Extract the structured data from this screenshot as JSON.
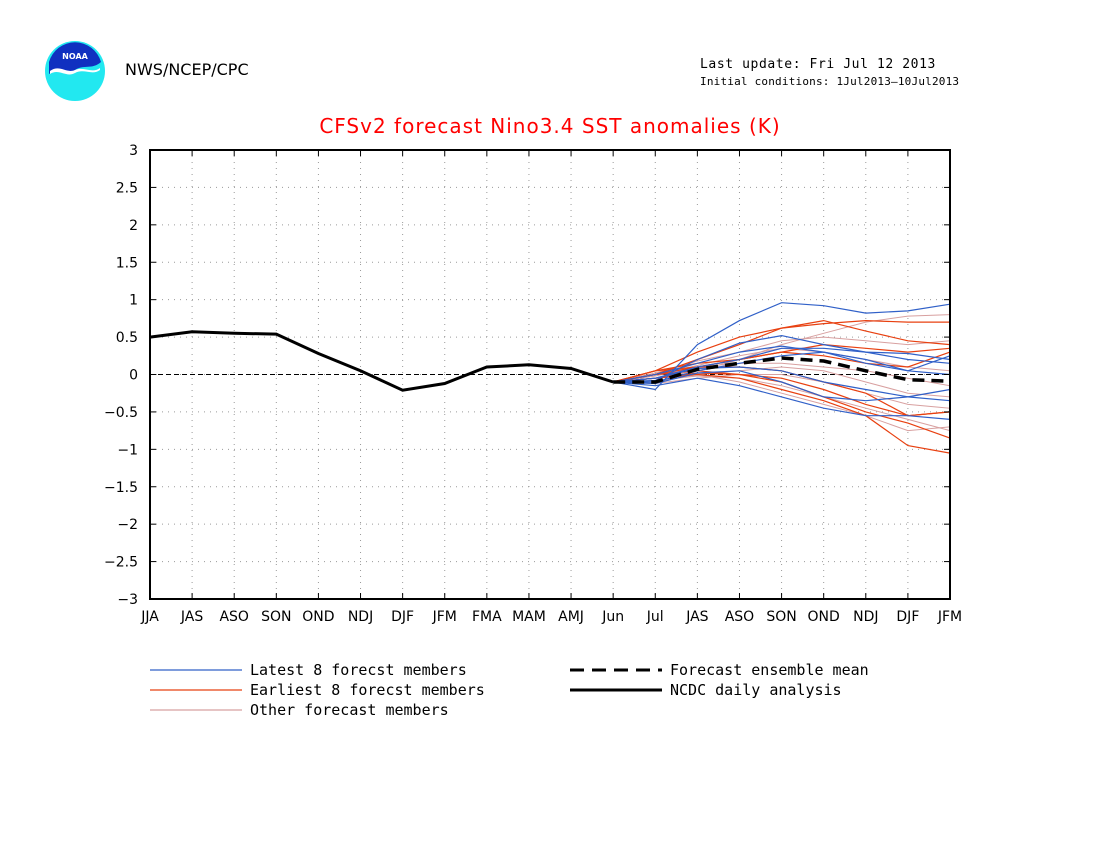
{
  "header": {
    "agency": "NWS/NCEP/CPC",
    "last_update": "Last update: Fri Jul 12 2013",
    "initial_conditions": "Initial conditions: 1Jul2013–10Jul2013",
    "logo_text": "NOAA"
  },
  "chart_data": {
    "type": "line",
    "title": "CFSv2 forecast Nino3.4 SST anomalies (K)",
    "xlabel": "",
    "ylabel": "",
    "categories": [
      "JJA",
      "JAS",
      "ASO",
      "SON",
      "OND",
      "NDJ",
      "DJF",
      "JFM",
      "FMA",
      "MAM",
      "AMJ",
      "Jun",
      "Jul",
      "JAS",
      "ASO",
      "SON",
      "OND",
      "NDJ",
      "DJF",
      "JFM"
    ],
    "ylim": [
      -3,
      3
    ],
    "yticks": [
      "3",
      "2.5",
      "2",
      "1.5",
      "1",
      "0.5",
      "0",
      "−0.5",
      "−1",
      "−1.5",
      "−2",
      "−2.5",
      "−3"
    ],
    "ytick_values": [
      3,
      2.5,
      2,
      1.5,
      1,
      0.5,
      0,
      -0.5,
      -1,
      -1.5,
      -2,
      -2.5,
      -3
    ],
    "grid": "dotted",
    "legend_position": "bottom",
    "colors": {
      "latest": "#3060c8",
      "earliest": "#e84010",
      "other": "#d8a0a0",
      "mean": "#000000",
      "analysis": "#000000",
      "title": "#ff0000"
    },
    "legend": [
      {
        "label": "Latest 8 forecst members",
        "style": "latest"
      },
      {
        "label": "Earliest 8 forecst members",
        "style": "earliest"
      },
      {
        "label": "Other forecast members",
        "style": "other"
      },
      {
        "label": "Forecast ensemble mean",
        "style": "mean"
      },
      {
        "label": "NCDC daily analysis",
        "style": "analysis"
      }
    ],
    "analysis": {
      "name": "NCDC daily analysis",
      "x_start": 0,
      "values": [
        0.5,
        0.57,
        0.55,
        0.54,
        0.28,
        0.05,
        -0.21,
        -0.12,
        0.1,
        0.13,
        0.08,
        -0.1
      ]
    },
    "ensemble_mean": {
      "name": "Forecast ensemble mean",
      "x_start": 11,
      "values": [
        -0.1,
        -0.1,
        0.07,
        0.15,
        0.22,
        0.18,
        0.05,
        -0.07,
        -0.09
      ]
    },
    "members_x_start": 11,
    "members": [
      {
        "group": "latest",
        "values": [
          -0.1,
          -0.2,
          0.4,
          0.72,
          0.96,
          0.92,
          0.82,
          0.85,
          0.94
        ]
      },
      {
        "group": "latest",
        "values": [
          -0.1,
          -0.08,
          0.2,
          0.42,
          0.52,
          0.4,
          0.3,
          0.2,
          0.15
        ]
      },
      {
        "group": "latest",
        "values": [
          -0.1,
          0.0,
          0.15,
          0.3,
          0.38,
          0.3,
          0.15,
          0.05,
          0.0
        ]
      },
      {
        "group": "latest",
        "values": [
          -0.1,
          -0.05,
          0.1,
          0.2,
          0.35,
          0.35,
          0.3,
          0.28,
          0.2
        ]
      },
      {
        "group": "latest",
        "values": [
          -0.1,
          -0.12,
          0.02,
          0.05,
          -0.1,
          -0.3,
          -0.35,
          -0.3,
          -0.2
        ]
      },
      {
        "group": "latest",
        "values": [
          -0.1,
          -0.15,
          -0.05,
          -0.15,
          -0.3,
          -0.45,
          -0.55,
          -0.55,
          -0.6
        ]
      },
      {
        "group": "latest",
        "values": [
          -0.1,
          -0.05,
          0.08,
          0.1,
          0.05,
          -0.1,
          -0.2,
          -0.3,
          -0.35
        ]
      },
      {
        "group": "latest",
        "values": [
          -0.1,
          -0.1,
          0.05,
          0.15,
          0.25,
          0.3,
          0.2,
          0.05,
          0.25
        ]
      },
      {
        "group": "earliest",
        "values": [
          -0.1,
          0.05,
          0.3,
          0.5,
          0.62,
          0.68,
          0.72,
          0.7,
          0.7
        ]
      },
      {
        "group": "earliest",
        "values": [
          -0.1,
          0.0,
          0.2,
          0.4,
          0.62,
          0.72,
          0.58,
          0.45,
          0.4
        ]
      },
      {
        "group": "earliest",
        "values": [
          -0.1,
          0.05,
          0.15,
          0.2,
          0.3,
          0.4,
          0.35,
          0.3,
          0.35
        ]
      },
      {
        "group": "earliest",
        "values": [
          -0.1,
          -0.05,
          0.0,
          -0.05,
          -0.2,
          -0.35,
          -0.55,
          -0.95,
          -1.05
        ]
      },
      {
        "group": "earliest",
        "values": [
          -0.1,
          0.0,
          0.05,
          0.0,
          -0.1,
          -0.3,
          -0.5,
          -0.65,
          -0.85
        ]
      },
      {
        "group": "earliest",
        "values": [
          -0.1,
          0.05,
          0.1,
          0.1,
          0.05,
          -0.1,
          -0.25,
          -0.55,
          -0.5
        ]
      },
      {
        "group": "earliest",
        "values": [
          -0.1,
          0.0,
          0.1,
          0.2,
          0.3,
          0.25,
          0.15,
          0.1,
          0.3
        ]
      },
      {
        "group": "earliest",
        "values": [
          -0.1,
          -0.05,
          0.02,
          0.0,
          -0.05,
          -0.2,
          -0.4,
          -0.55,
          -0.5
        ]
      },
      {
        "group": "other",
        "values": [
          -0.1,
          -0.1,
          0.0,
          0.05,
          0.1,
          0.05,
          -0.1,
          -0.25,
          -0.3
        ]
      },
      {
        "group": "other",
        "values": [
          -0.1,
          -0.05,
          0.05,
          0.2,
          0.4,
          0.55,
          0.7,
          0.78,
          0.8
        ]
      },
      {
        "group": "other",
        "values": [
          -0.1,
          -0.08,
          -0.02,
          -0.05,
          -0.15,
          -0.3,
          -0.45,
          -0.6,
          -0.75
        ]
      },
      {
        "group": "other",
        "values": [
          -0.1,
          0.0,
          0.12,
          0.25,
          0.35,
          0.3,
          0.2,
          0.1,
          0.05
        ]
      },
      {
        "group": "other",
        "values": [
          -0.1,
          -0.12,
          -0.05,
          0.0,
          0.0,
          -0.1,
          -0.25,
          -0.4,
          -0.45
        ]
      },
      {
        "group": "other",
        "values": [
          -0.1,
          0.02,
          0.18,
          0.3,
          0.45,
          0.5,
          0.45,
          0.4,
          0.45
        ]
      },
      {
        "group": "other",
        "values": [
          -0.1,
          -0.05,
          0.0,
          -0.1,
          -0.25,
          -0.4,
          -0.55,
          -0.75,
          -0.7
        ]
      },
      {
        "group": "other",
        "values": [
          -0.1,
          -0.02,
          0.1,
          0.15,
          0.15,
          0.1,
          0.05,
          -0.05,
          -0.15
        ]
      }
    ]
  }
}
